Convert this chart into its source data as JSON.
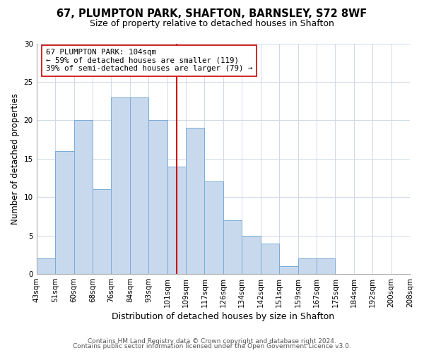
{
  "title": "67, PLUMPTON PARK, SHAFTON, BARNSLEY, S72 8WF",
  "subtitle": "Size of property relative to detached houses in Shafton",
  "xlabel": "Distribution of detached houses by size in Shafton",
  "ylabel": "Number of detached properties",
  "footer_line1": "Contains HM Land Registry data © Crown copyright and database right 2024.",
  "footer_line2": "Contains public sector information licensed under the Open Government Licence v3.0.",
  "bin_labels": [
    "43sqm",
    "51sqm",
    "60sqm",
    "68sqm",
    "76sqm",
    "84sqm",
    "93sqm",
    "101sqm",
    "109sqm",
    "117sqm",
    "126sqm",
    "134sqm",
    "142sqm",
    "151sqm",
    "159sqm",
    "167sqm",
    "175sqm",
    "184sqm",
    "192sqm",
    "200sqm",
    "208sqm"
  ],
  "bar_values": [
    2,
    16,
    20,
    11,
    23,
    23,
    20,
    14,
    19,
    12,
    7,
    5,
    4,
    1,
    2,
    2,
    0,
    0,
    0,
    0
  ],
  "bar_color": "#c8d9ee",
  "bar_edge_color": "#7aabd4",
  "reference_line_x": 7.5,
  "reference_line_color": "#cc0000",
  "annotation_box_text": "67 PLUMPTON PARK: 104sqm\n← 59% of detached houses are smaller (119)\n39% of semi-detached houses are larger (79) →",
  "annotation_box_edge_color": "#cc0000",
  "annotation_box_face_color": "#ffffff",
  "ylim": [
    0,
    30
  ],
  "yticks": [
    0,
    5,
    10,
    15,
    20,
    25,
    30
  ],
  "n_bins": 20,
  "n_ticks": 21
}
